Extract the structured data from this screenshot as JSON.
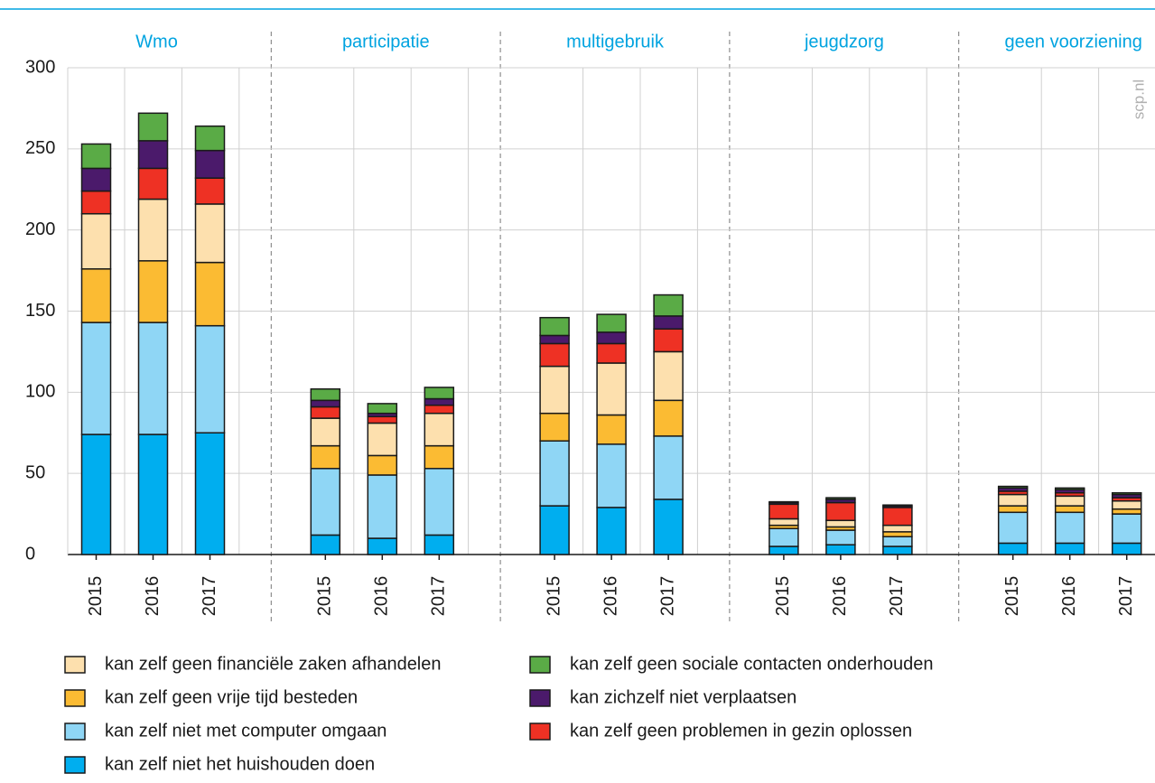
{
  "chart_data": {
    "type": "stacked_bar",
    "watermark": "scp.nl",
    "groups": [
      "Wmo",
      "participatie",
      "multigebruik",
      "jeugdzorg",
      "geen voorziening"
    ],
    "categories": [
      "2015",
      "2016",
      "2017",
      "2015",
      "2016",
      "2017",
      "2015",
      "2016",
      "2017",
      "2015",
      "2016",
      "2017",
      "2015",
      "2016",
      "2017"
    ],
    "ylim": [
      0,
      300
    ],
    "yticks": [
      0,
      50,
      100,
      150,
      200,
      250,
      300
    ],
    "grid": true,
    "series": [
      {
        "name": "kan zelf niet het huishouden doen",
        "color": "#00aeef",
        "values": [
          74,
          74,
          75,
          12,
          10,
          12,
          30,
          29,
          34,
          5,
          6,
          5,
          7,
          7,
          7
        ]
      },
      {
        "name": "kan zelf niet met computer omgaan",
        "color": "#8fd6f5",
        "values": [
          69,
          69,
          66,
          41,
          39,
          41,
          40,
          39,
          39,
          11,
          9,
          6,
          19,
          19,
          18
        ]
      },
      {
        "name": "kan zelf geen vrije tijd besteden",
        "color": "#fbbb33",
        "values": [
          33,
          38,
          39,
          14,
          12,
          14,
          17,
          18,
          22,
          2,
          2,
          3,
          4,
          4,
          3
        ]
      },
      {
        "name": "kan zelf geen financiële zaken afhandelen",
        "color": "#fde0ae",
        "values": [
          34,
          38,
          36,
          17,
          20,
          20,
          29,
          32,
          30,
          4,
          4,
          4,
          7,
          6,
          5
        ]
      },
      {
        "name": "kan zelf geen problemen in gezin oplossen",
        "color": "#ee3124",
        "values": [
          14,
          19,
          16,
          7,
          4,
          5,
          14,
          12,
          14,
          9,
          11,
          11,
          2,
          2,
          2
        ]
      },
      {
        "name": "kan zichzelf niet verplaatsen",
        "color": "#4b1a6b",
        "values": [
          14,
          17,
          17,
          4,
          2,
          4,
          5,
          7,
          8,
          1,
          2,
          1,
          2,
          2,
          2
        ]
      },
      {
        "name": "kan zelf geen sociale contacten onderhouden",
        "color": "#5aab46",
        "values": [
          15,
          17,
          15,
          7,
          6,
          7,
          11,
          11,
          13,
          0.5,
          1,
          0.5,
          1,
          1,
          1
        ]
      }
    ]
  }
}
